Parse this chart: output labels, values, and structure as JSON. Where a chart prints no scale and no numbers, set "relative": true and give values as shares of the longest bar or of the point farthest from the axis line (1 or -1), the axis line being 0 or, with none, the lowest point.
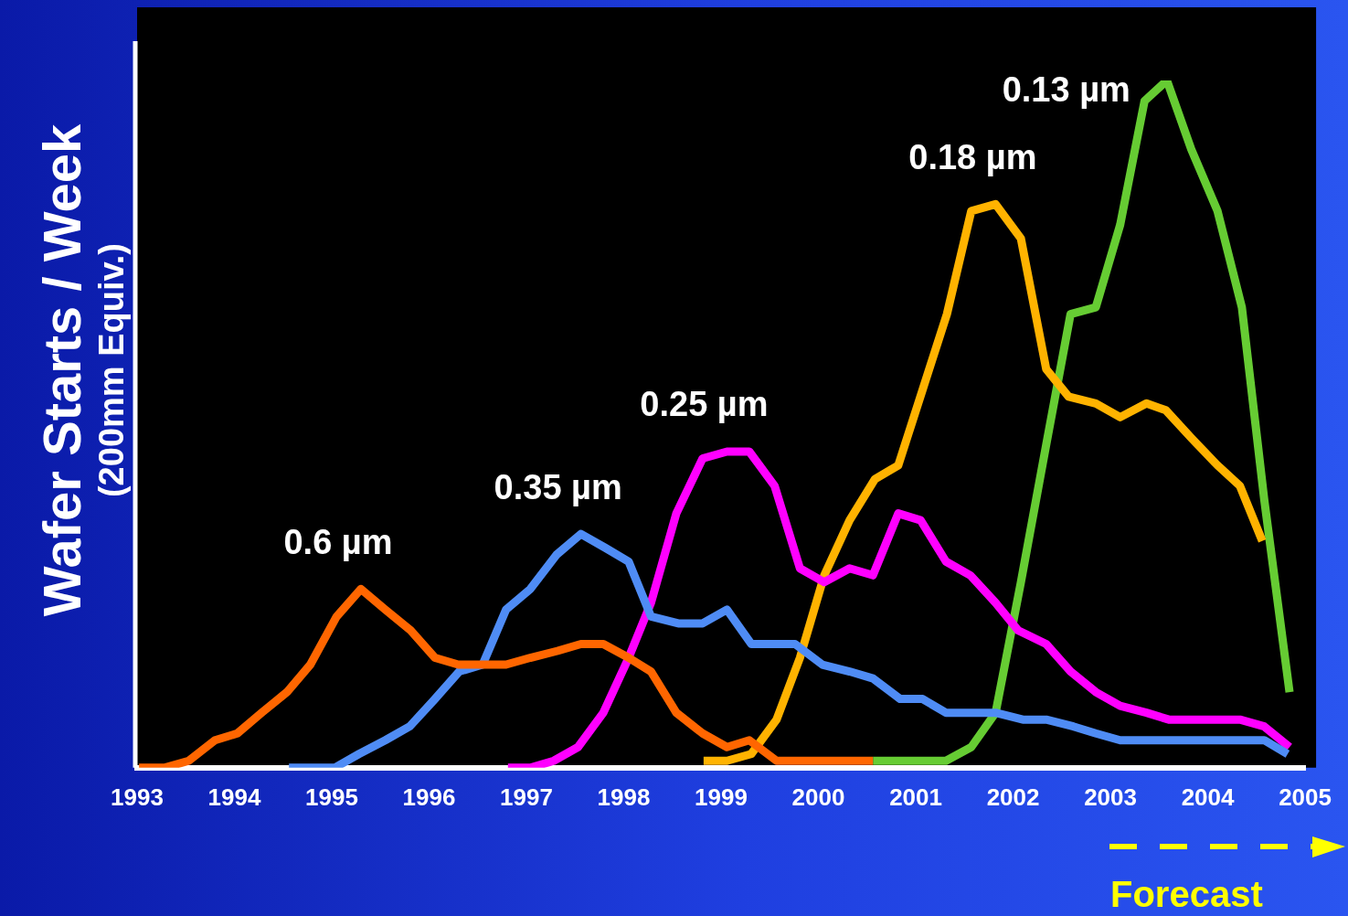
{
  "chart_data": {
    "type": "line",
    "relative": true,
    "ylabel": "Wafer Starts / Week\n(200mm Equiv.)",
    "xlim": [
      1993,
      2005
    ],
    "xticks": [
      1993,
      1994,
      1995,
      1996,
      1997,
      1998,
      1999,
      2000,
      2001,
      2002,
      2003,
      2004,
      2005
    ],
    "grid": false,
    "legend": false,
    "marker": "none",
    "line_style": "solid",
    "annotations": [
      "Forecast"
    ],
    "series": [
      {
        "name": "0.6 µm",
        "color": "#ff6600",
        "x": [
          1993.02,
          1993.28,
          1993.53,
          1993.8,
          1994.03,
          1994.28,
          1994.54,
          1994.78,
          1995.05,
          1995.3,
          1995.55,
          1995.81,
          1996.06,
          1996.3,
          1996.53,
          1996.79,
          1997.04,
          1997.32,
          1997.56,
          1997.79,
          1998.05,
          1998.28,
          1998.54,
          1998.81,
          1999.06,
          1999.29,
          1999.57,
          1999.81,
          2000.06,
          2000.32,
          2000.56
        ],
        "values": [
          0,
          0,
          0.01,
          0.04,
          0.05,
          0.08,
          0.11,
          0.15,
          0.22,
          0.26,
          0.23,
          0.2,
          0.16,
          0.15,
          0.15,
          0.15,
          0.16,
          0.17,
          0.18,
          0.18,
          0.16,
          0.14,
          0.08,
          0.05,
          0.03,
          0.04,
          0.01,
          0.01,
          0.01,
          0.01,
          0.01
        ]
      },
      {
        "name": "0.35 µm",
        "color": "#4f8cf5",
        "x": [
          1994.56,
          1994.8,
          1995.03,
          1995.28,
          1995.55,
          1995.8,
          1996.06,
          1996.31,
          1996.55,
          1996.79,
          1997.04,
          1997.31,
          1997.56,
          1997.81,
          1998.05,
          1998.28,
          1998.56,
          1998.81,
          1999.06,
          1999.31,
          1999.57,
          1999.76,
          2000.04,
          2000.32,
          2000.56,
          2000.84,
          2001.07,
          2001.31,
          2001.54,
          2001.82,
          2002.1,
          2002.34,
          2002.62,
          2002.85,
          2003.1,
          2003.55,
          2003.83,
          2004.1,
          2004.35,
          2004.58,
          2004.82
        ],
        "values": [
          0,
          0,
          0,
          0.02,
          0.04,
          0.06,
          0.1,
          0.14,
          0.15,
          0.23,
          0.26,
          0.31,
          0.34,
          0.32,
          0.3,
          0.22,
          0.21,
          0.21,
          0.23,
          0.18,
          0.18,
          0.18,
          0.15,
          0.14,
          0.13,
          0.1,
          0.1,
          0.08,
          0.08,
          0.08,
          0.07,
          0.07,
          0.06,
          0.05,
          0.04,
          0.04,
          0.04,
          0.04,
          0.04,
          0.04,
          0.02
        ]
      },
      {
        "name": "0.25 µm",
        "color": "#ff00ff",
        "x": [
          1996.81,
          1997.04,
          1997.28,
          1997.53,
          1997.79,
          1998.05,
          1998.28,
          1998.54,
          1998.81,
          1999.06,
          1999.29,
          1999.55,
          1999.81,
          2000.06,
          2000.32,
          2000.56,
          2000.82,
          2001.05,
          2001.31,
          2001.56,
          2001.82,
          2002.05,
          2002.34,
          2002.59,
          2002.85,
          2003.1,
          2003.37,
          2003.6,
          2003.83,
          2004.07,
          2004.33,
          2004.58,
          2004.84
        ],
        "values": [
          0,
          0,
          0.01,
          0.03,
          0.08,
          0.16,
          0.24,
          0.37,
          0.45,
          0.46,
          0.46,
          0.41,
          0.29,
          0.27,
          0.29,
          0.28,
          0.37,
          0.36,
          0.3,
          0.28,
          0.24,
          0.2,
          0.18,
          0.14,
          0.11,
          0.09,
          0.08,
          0.07,
          0.07,
          0.07,
          0.07,
          0.06,
          0.03
        ]
      },
      {
        "name": "0.18 µm",
        "color": "#ffb300",
        "x": [
          1998.82,
          1999.06,
          1999.31,
          1999.57,
          1999.81,
          2000.06,
          2000.32,
          2000.58,
          2000.82,
          2001.07,
          2001.32,
          2001.57,
          2001.82,
          2002.08,
          2002.34,
          2002.57,
          2002.85,
          2003.1,
          2003.37,
          2003.57,
          2003.83,
          2004.1,
          2004.33,
          2004.56
        ],
        "values": [
          0.01,
          0.01,
          0.02,
          0.07,
          0.16,
          0.28,
          0.36,
          0.42,
          0.44,
          0.55,
          0.66,
          0.81,
          0.82,
          0.77,
          0.58,
          0.54,
          0.53,
          0.51,
          0.53,
          0.52,
          0.48,
          0.44,
          0.41,
          0.33
        ]
      },
      {
        "name": "0.13 µm",
        "color": "#66cc33",
        "x": [
          2000.56,
          2001.07,
          2001.31,
          2001.57,
          2001.82,
          2002.08,
          2002.34,
          2002.59,
          2002.85,
          2003.1,
          2003.35,
          2003.58,
          2003.83,
          2004.1,
          2004.35,
          2004.58,
          2004.84
        ],
        "values": [
          0.01,
          0.01,
          0.01,
          0.03,
          0.08,
          0.27,
          0.47,
          0.66,
          0.67,
          0.79,
          0.97,
          1,
          0.9,
          0.81,
          0.67,
          0.39,
          0.11
        ]
      }
    ]
  }
}
